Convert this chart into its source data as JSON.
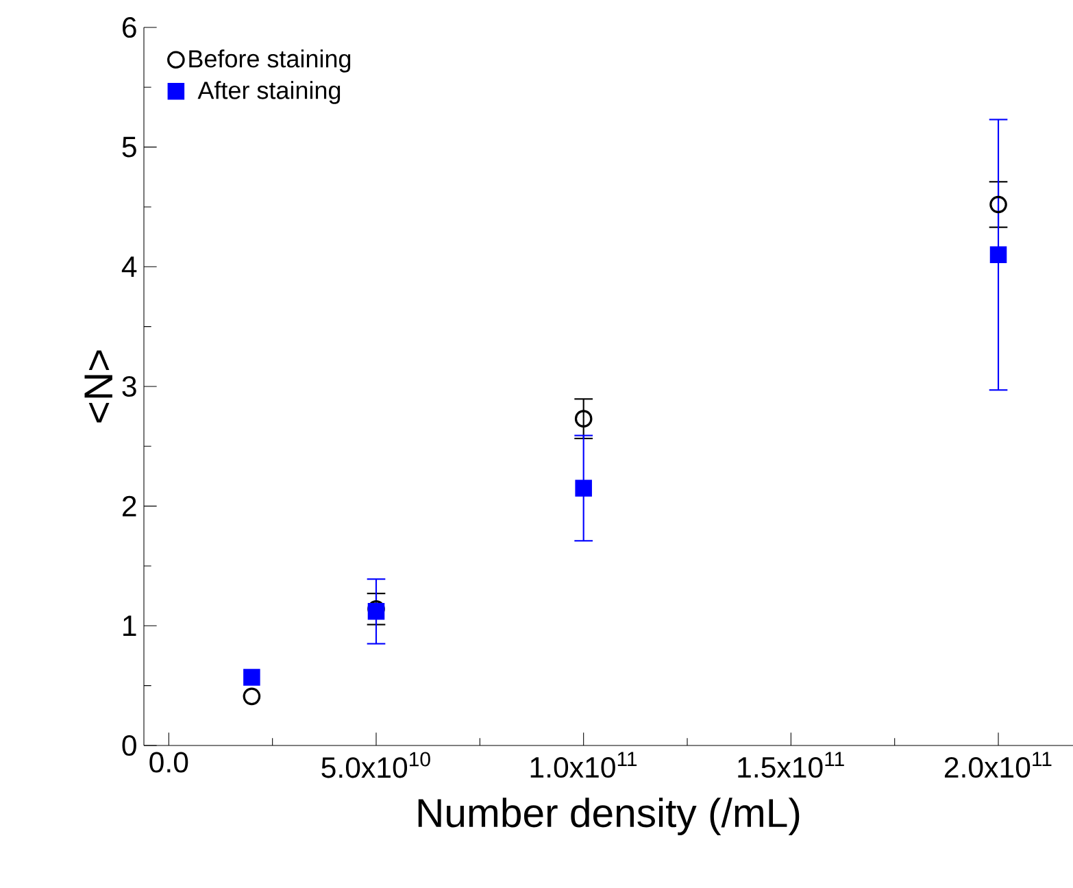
{
  "chart_data": {
    "type": "scatter",
    "xlabel": "Number density (/mL)",
    "ylabel": "<N>",
    "x": [
      20000000000.0,
      50000000000.0,
      100000000000.0,
      200000000000.0
    ],
    "series": [
      {
        "name": "Before staining",
        "color": "#000000",
        "marker": "circle",
        "values": [
          0.41,
          1.14,
          2.73,
          4.52
        ],
        "errors": [
          null,
          0.13,
          0.165,
          0.19
        ]
      },
      {
        "name": "After staining",
        "color": "#0000ff",
        "marker": "square",
        "values": [
          0.57,
          1.12,
          2.15,
          4.1
        ],
        "errors": [
          null,
          0.27,
          0.44,
          1.13
        ]
      }
    ],
    "xlim": [
      -6000000000.0,
      218000000000.0
    ],
    "xticks": [
      {
        "value": 0,
        "label": "0.0"
      },
      {
        "value": 50000000000.0,
        "label": "5.0x10$^{10}$"
      },
      {
        "value": 100000000000.0,
        "label": "1.0x10$^{11}$"
      },
      {
        "value": 150000000000.0,
        "label": "1.5x10$^{11}$"
      },
      {
        "value": 200000000000.0,
        "label": "2.0x10$^{11}$"
      }
    ],
    "ylim": [
      0,
      6
    ],
    "yticks": [
      0,
      1,
      2,
      3,
      4,
      5,
      6
    ],
    "grid": false,
    "legend": "top left"
  }
}
